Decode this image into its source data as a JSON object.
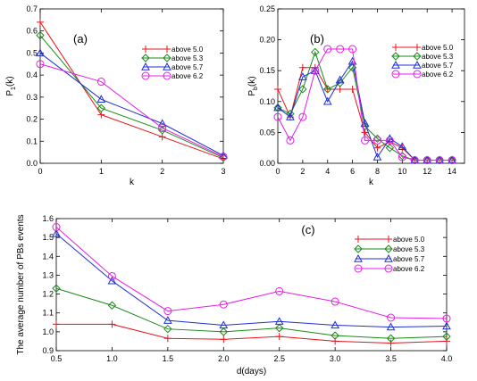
{
  "colors": {
    "above_5_0": "#e8141e",
    "above_5_3": "#1a8a1a",
    "above_5_7": "#1f2fd6",
    "above_6_2": "#e61ee6"
  },
  "markers": {
    "above_5_0": "plus",
    "above_5_3": "diamond",
    "above_5_7": "triangle",
    "above_6_2": "circle"
  },
  "chart_data": [
    {
      "id": "a",
      "type": "line",
      "panel_label": "(a)",
      "xlabel": "k",
      "ylabel": "P",
      "ylabel_sub": "1",
      "ylabel_tail": "(k)",
      "xlim": [
        0,
        3
      ],
      "ylim": [
        0,
        0.7
      ],
      "xticks": [
        0,
        1,
        2,
        3
      ],
      "xtick_labels": [
        "0",
        "1",
        "2",
        "3"
      ],
      "yticks": [
        0,
        0.1,
        0.2,
        0.3,
        0.4,
        0.5,
        0.6,
        0.7
      ],
      "ytick_labels": [
        "0.0",
        "0.1",
        "0.2",
        "0.3",
        "0.4",
        "0.5",
        "0.6",
        "0.7"
      ],
      "legend_position": "right",
      "x": [
        0,
        1,
        2,
        3
      ],
      "series": [
        {
          "key": "above_5_0",
          "name": "above 5.0",
          "values": [
            0.64,
            0.22,
            0.12,
            0.02
          ]
        },
        {
          "key": "above_5_3",
          "name": "above 5.3",
          "values": [
            0.58,
            0.25,
            0.15,
            0.025
          ]
        },
        {
          "key": "above_5_7",
          "name": "above 5.7",
          "values": [
            0.5,
            0.29,
            0.18,
            0.035
          ]
        },
        {
          "key": "above_6_2",
          "name": "above 6.2",
          "values": [
            0.45,
            0.37,
            0.16,
            0.03
          ]
        }
      ]
    },
    {
      "id": "b",
      "type": "line",
      "panel_label": "(b)",
      "xlabel": "k",
      "ylabel": "P",
      "ylabel_sub": "b",
      "ylabel_tail": "(k)",
      "xlim": [
        0,
        15
      ],
      "ylim": [
        0,
        0.25
      ],
      "xticks": [
        0,
        2,
        4,
        6,
        8,
        10,
        12,
        14
      ],
      "xtick_labels": [
        "0",
        "2",
        "4",
        "6",
        "8",
        "10",
        "12",
        "14"
      ],
      "yticks": [
        0,
        0.05,
        0.1,
        0.15,
        0.2,
        0.25
      ],
      "ytick_labels": [
        "0.00",
        "0.05",
        "0.10",
        "0.15",
        "0.20",
        "0.25"
      ],
      "legend_position": "top-right",
      "x": [
        0,
        1,
        2,
        3,
        4,
        5,
        6,
        7,
        8,
        9,
        10,
        11,
        12,
        13,
        14
      ],
      "series": [
        {
          "key": "above_5_0",
          "name": "above 5.0",
          "values": [
            0.12,
            0.075,
            0.155,
            0.155,
            0.12,
            0.12,
            0.12,
            0.05,
            0.025,
            0.035,
            0.025,
            0.005,
            0.005,
            0.005,
            0.005
          ]
        },
        {
          "key": "above_5_3",
          "name": "above 5.3",
          "values": [
            0.09,
            0.08,
            0.12,
            0.18,
            0.12,
            0.13,
            0.155,
            0.06,
            0.04,
            0.025,
            0.012,
            0.005,
            0.005,
            0.005,
            0.005
          ]
        },
        {
          "key": "above_5_7",
          "name": "above 5.7",
          "values": [
            0.09,
            0.075,
            0.14,
            0.15,
            0.1,
            0.135,
            0.165,
            0.065,
            0.01,
            0.04,
            0.027,
            0.005,
            0.005,
            0.005,
            0.005
          ]
        },
        {
          "key": "above_6_2",
          "name": "above 6.2",
          "values": [
            0.075,
            0.037,
            0.075,
            0.15,
            0.185,
            0.185,
            0.185,
            0.037,
            0.037,
            0.037,
            0.01,
            0.005,
            0.005,
            0.005,
            0.005
          ]
        }
      ]
    },
    {
      "id": "c",
      "type": "line",
      "panel_label": "(c)",
      "xlabel": "d(days)",
      "ylabel": "The average number of PBs events",
      "xlim": [
        0.5,
        4.0
      ],
      "ylim": [
        0.9,
        1.6
      ],
      "xticks": [
        0.5,
        1.0,
        1.5,
        2.0,
        2.5,
        3.0,
        3.5,
        4.0
      ],
      "xtick_labels": [
        "0.5",
        "1.0",
        "1.5",
        "2.0",
        "2.5",
        "3.0",
        "3.5",
        "4.0"
      ],
      "yticks": [
        0.9,
        1.0,
        1.1,
        1.2,
        1.3,
        1.4,
        1.5,
        1.6
      ],
      "ytick_labels": [
        "0.9",
        "1.0",
        "1.1",
        "1.2",
        "1.3",
        "1.4",
        "1.5",
        "1.6"
      ],
      "legend_position": "top-right",
      "x": [
        0.5,
        1.0,
        1.5,
        2.0,
        2.5,
        3.0,
        3.5,
        4.0
      ],
      "series": [
        {
          "key": "above_5_0",
          "name": "above 5.0",
          "values": [
            1.04,
            1.04,
            0.965,
            0.96,
            0.975,
            0.95,
            0.94,
            0.95
          ]
        },
        {
          "key": "above_5_3",
          "name": "above 5.3",
          "values": [
            1.23,
            1.14,
            1.015,
            1.0,
            1.02,
            0.98,
            0.965,
            0.975
          ]
        },
        {
          "key": "above_5_7",
          "name": "above 5.7",
          "values": [
            1.52,
            1.27,
            1.06,
            1.035,
            1.055,
            1.035,
            1.025,
            1.03
          ]
        },
        {
          "key": "above_6_2",
          "name": "above 6.2",
          "values": [
            1.555,
            1.295,
            1.11,
            1.145,
            1.215,
            1.16,
            1.075,
            1.07
          ]
        }
      ]
    }
  ]
}
